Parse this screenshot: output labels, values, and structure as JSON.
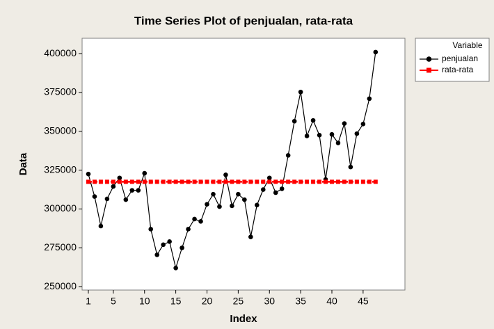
{
  "chart_data": {
    "type": "line",
    "title": "Time Series Plot of penjualan, rata-rata",
    "x_label": "Index",
    "y_label": "Data",
    "legend_title": "Variable",
    "legend": "top-right-outside",
    "x": [
      1,
      2,
      3,
      4,
      5,
      6,
      7,
      8,
      9,
      10,
      11,
      12,
      13,
      14,
      15,
      16,
      17,
      18,
      19,
      20,
      21,
      22,
      23,
      24,
      25,
      26,
      27,
      28,
      29,
      30,
      31,
      32,
      33,
      34,
      35,
      36,
      37,
      38,
      39,
      40,
      41,
      42,
      43,
      44,
      45,
      46,
      47
    ],
    "series": [
      {
        "name": "penjualan",
        "color": "#000000",
        "marker": "circle",
        "dashed": false,
        "values": [
          322500,
          308000,
          289000,
          306500,
          314500,
          320000,
          306000,
          312000,
          312000,
          323000,
          287000,
          270500,
          277000,
          279000,
          262000,
          275000,
          287000,
          293500,
          292000,
          303000,
          309500,
          301500,
          322000,
          302000,
          309500,
          306000,
          282000,
          302500,
          312500,
          320000,
          310500,
          313000,
          334500,
          356500,
          375300,
          347000,
          357000,
          347500,
          319000,
          348000,
          342500,
          355000,
          327000,
          348500,
          354700,
          371000,
          401000
        ]
      },
      {
        "name": "rata-rata",
        "color": "#ff0000",
        "marker": "square",
        "dashed": true,
        "values": [
          317500,
          317500,
          317500,
          317500,
          317500,
          317500,
          317500,
          317500,
          317500,
          317500,
          317500,
          317500,
          317500,
          317500,
          317500,
          317500,
          317500,
          317500,
          317500,
          317500,
          317500,
          317500,
          317500,
          317500,
          317500,
          317500,
          317500,
          317500,
          317500,
          317500,
          317500,
          317500,
          317500,
          317500,
          317500,
          317500,
          317500,
          317500,
          317500,
          317500,
          317500,
          317500,
          317500,
          317500,
          317500,
          317500,
          317500
        ]
      }
    ],
    "xlim": [
      0,
      51.7
    ],
    "xticks": [
      1,
      5,
      10,
      15,
      20,
      25,
      30,
      35,
      40,
      45
    ],
    "ylim": [
      247800,
      409900
    ],
    "yticks": [
      250000,
      275000,
      300000,
      325000,
      350000,
      375000,
      400000
    ]
  }
}
